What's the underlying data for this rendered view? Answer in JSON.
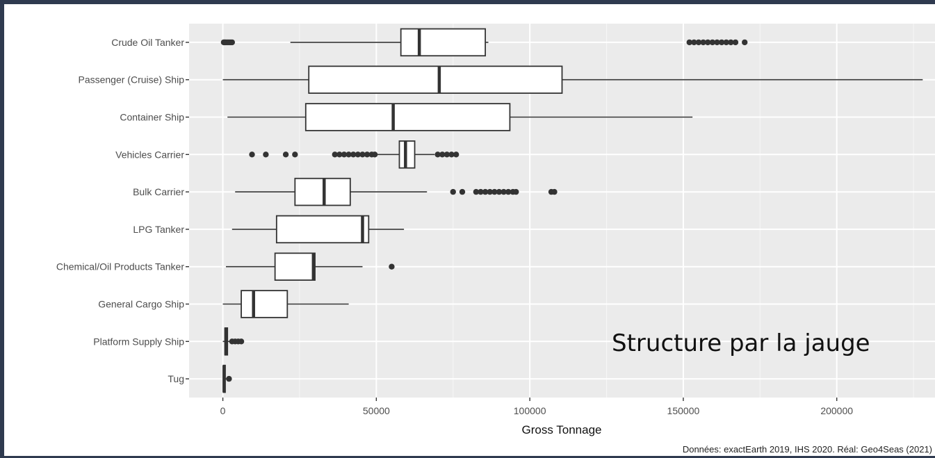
{
  "chart_data": {
    "type": "boxplot",
    "orientation": "horizontal",
    "title": "",
    "xlabel": "Gross Tonnage",
    "ylabel": "",
    "xlim": [
      -11000,
      232000
    ],
    "x_ticks": [
      0,
      50000,
      100000,
      150000,
      200000
    ],
    "x_tick_labels": [
      "0",
      "50000",
      "100000",
      "150000",
      "200000"
    ],
    "grid": true,
    "background": "#ebebeb",
    "categories": [
      "Crude Oil Tanker",
      "Passenger (Cruise) Ship",
      "Container Ship",
      "Vehicles Carrier",
      "Bulk Carrier",
      "LPG Tanker",
      "Chemical/Oil Products Tanker",
      "General Cargo Ship",
      "Platform Supply Ship",
      "Tug"
    ],
    "boxes": [
      {
        "whisker_low": 22000,
        "q1": 58000,
        "median": 64000,
        "q3": 85500,
        "whisker_high": 86500,
        "outliers": [
          300,
          600,
          1000,
          1500,
          2000,
          2500,
          3000,
          152000,
          153500,
          155000,
          156500,
          158000,
          159500,
          161000,
          162500,
          164000,
          165500,
          167000,
          170000
        ]
      },
      {
        "whisker_low": 0,
        "q1": 28000,
        "median": 70500,
        "q3": 110500,
        "whisker_high": 228000,
        "outliers": []
      },
      {
        "whisker_low": 1500,
        "q1": 27000,
        "median": 55500,
        "q3": 93500,
        "whisker_high": 153000,
        "outliers": []
      },
      {
        "whisker_low": 50000,
        "q1": 57500,
        "median": 59500,
        "q3": 62500,
        "whisker_high": 69000,
        "outliers": [
          9500,
          14000,
          20500,
          23500,
          36500,
          38000,
          39500,
          41000,
          42500,
          44000,
          45500,
          47000,
          48500,
          49500,
          70000,
          71500,
          73000,
          74500,
          76000
        ]
      },
      {
        "whisker_low": 4000,
        "q1": 23500,
        "median": 33000,
        "q3": 41500,
        "whisker_high": 66500,
        "outliers": [
          75000,
          78000,
          82500,
          84000,
          85500,
          87000,
          88500,
          90000,
          91500,
          93000,
          94500,
          95500,
          107000,
          108000
        ]
      },
      {
        "whisker_low": 3000,
        "q1": 17500,
        "median": 45500,
        "q3": 47500,
        "whisker_high": 59000,
        "outliers": []
      },
      {
        "whisker_low": 1000,
        "q1": 17000,
        "median": 29500,
        "q3": 30000,
        "whisker_high": 45500,
        "outliers": [
          55000
        ]
      },
      {
        "whisker_low": 0,
        "q1": 6000,
        "median": 10000,
        "q3": 21000,
        "whisker_high": 41000,
        "outliers": []
      },
      {
        "whisker_low": 0,
        "q1": 700,
        "median": 1000,
        "q3": 1500,
        "whisker_high": 2500,
        "outliers": [
          3000,
          4000,
          5000,
          6000
        ]
      },
      {
        "whisker_low": 0,
        "q1": 200,
        "median": 400,
        "q3": 700,
        "whisker_high": 1200,
        "outliers": [
          2000
        ]
      }
    ]
  },
  "annotation": "Structure par la jauge",
  "caption": "Données: exactEarth 2019, IHS 2020. Réal: Geo4Seas (2021)"
}
